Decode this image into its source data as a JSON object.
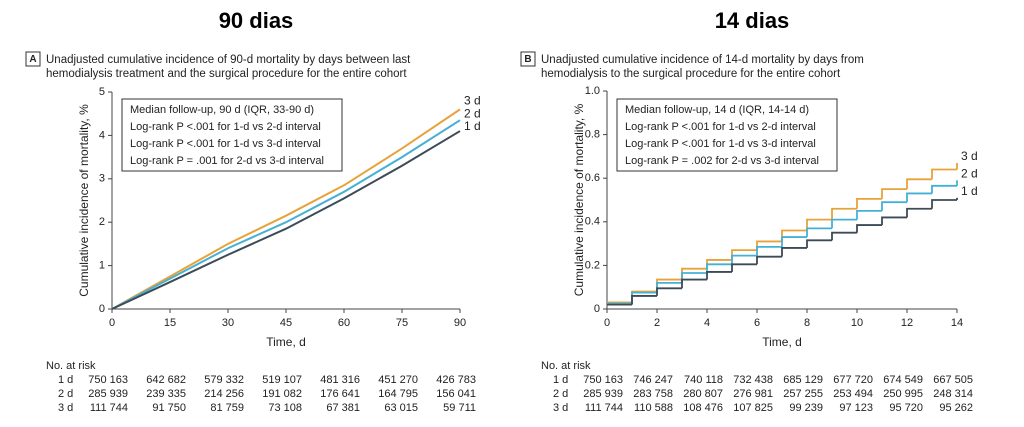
{
  "chart_data": [
    {
      "type": "line",
      "heading": "90 dias",
      "panel": "A",
      "title": [
        "Unadjusted cumulative incidence of 90-d mortality by days between last",
        "hemodialysis treatment and the surgical procedure for the entire cohort"
      ],
      "xlabel": "Time, d",
      "ylabel": "Cumulative incidence of mortality, %",
      "xlim": [
        0,
        90
      ],
      "xticks": [
        0,
        15,
        30,
        45,
        60,
        75,
        90
      ],
      "ylim": [
        0,
        5
      ],
      "yticks": [
        0,
        1,
        2,
        3,
        4,
        5
      ],
      "annotations": [
        "Median follow-up, 90 d (IQR, 33-90 d)",
        "Log-rank P <.001 for 1-d vs 2-d interval",
        "Log-rank P <.001 for 1-d vs 3-d interval",
        "Log-rank P = .001 for 2-d vs 3-d interval"
      ],
      "x": [
        0,
        15,
        30,
        45,
        60,
        75,
        90
      ],
      "series": [
        {
          "name": "3 d",
          "color": "#e8a23a",
          "values": [
            0,
            0.75,
            1.5,
            2.15,
            2.85,
            3.7,
            4.6
          ]
        },
        {
          "name": "2 d",
          "color": "#45b0d6",
          "values": [
            0,
            0.7,
            1.4,
            2.0,
            2.7,
            3.5,
            4.35
          ]
        },
        {
          "name": "1 d",
          "color": "#3d4b57",
          "values": [
            0,
            0.62,
            1.25,
            1.85,
            2.55,
            3.3,
            4.1
          ]
        }
      ],
      "risk_table": {
        "title": "No. at risk",
        "rows": [
          {
            "label": "1 d",
            "values": [
              "750 163",
              "642 682",
              "579 332",
              "519 107",
              "481 316",
              "451 270",
              "426 783"
            ]
          },
          {
            "label": "2 d",
            "values": [
              "285 939",
              "239 335",
              "214 256",
              "191 082",
              "176 641",
              "164 795",
              "156 041"
            ]
          },
          {
            "label": "3 d",
            "values": [
              "111 744",
              "91 750",
              "81 759",
              "73 108",
              "67 381",
              "63 015",
              "59 711"
            ]
          }
        ]
      }
    },
    {
      "type": "step",
      "heading": "14 dias",
      "panel": "B",
      "title": [
        "Unadjusted cumulative incidence of 14-d mortality by days from",
        "hemodialysis to the surgical procedure for the entire cohort"
      ],
      "xlabel": "Time, d",
      "ylabel": "Cumulative incidence of mortality, %",
      "xlim": [
        0,
        14
      ],
      "xticks": [
        0,
        2,
        4,
        6,
        8,
        10,
        12,
        14
      ],
      "ylim": [
        0,
        1
      ],
      "yticks": [
        0,
        0.2,
        0.4,
        0.6,
        0.8,
        {
          "value": 1,
          "label": "1.0"
        }
      ],
      "annotations": [
        "Median follow-up, 14 d (IQR, 14-14 d)",
        "Log-rank P <.001 for 1-d vs 2-d interval",
        "Log-rank P <.001 for 1-d vs 3-d interval",
        "Log-rank P = .002 for 2-d vs 3-d interval"
      ],
      "x": [
        0,
        1,
        2,
        3,
        4,
        5,
        6,
        7,
        8,
        9,
        10,
        11,
        12,
        13,
        14
      ],
      "series": [
        {
          "name": "3 d",
          "color": "#e8a23a",
          "values": [
            0.03,
            0.08,
            0.135,
            0.185,
            0.225,
            0.27,
            0.31,
            0.36,
            0.41,
            0.46,
            0.505,
            0.55,
            0.595,
            0.64,
            0.67
          ]
        },
        {
          "name": "2 d",
          "color": "#45b0d6",
          "values": [
            0.025,
            0.075,
            0.12,
            0.165,
            0.205,
            0.245,
            0.285,
            0.33,
            0.37,
            0.41,
            0.45,
            0.49,
            0.53,
            0.565,
            0.59
          ]
        },
        {
          "name": "1 d",
          "color": "#3d4b57",
          "values": [
            0.02,
            0.06,
            0.095,
            0.135,
            0.17,
            0.205,
            0.24,
            0.28,
            0.315,
            0.35,
            0.385,
            0.42,
            0.46,
            0.5,
            0.51
          ]
        }
      ],
      "risk_table": {
        "title": "No. at risk",
        "rows": [
          {
            "label": "1 d",
            "values": [
              "750 163",
              "746 247",
              "740 118",
              "732 438",
              "685 129",
              "677 720",
              "674 549",
              "667 505"
            ]
          },
          {
            "label": "2 d",
            "values": [
              "285 939",
              "283 758",
              "280 807",
              "276 981",
              "257 255",
              "253 494",
              "250 995",
              "248 314"
            ]
          },
          {
            "label": "3 d",
            "values": [
              "111 744",
              "110 588",
              "108 476",
              "107 825",
              "99 239",
              "97 123",
              "95 720",
              "95 262"
            ]
          }
        ]
      }
    }
  ]
}
